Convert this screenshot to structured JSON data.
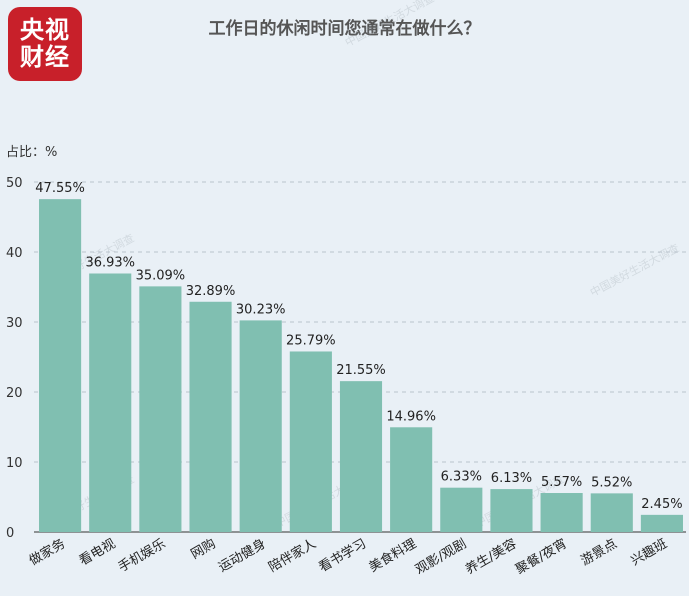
{
  "brand": {
    "line1": "央视",
    "line2": "财经",
    "color": "#c8202a"
  },
  "watermark": "中国美好生活大调查",
  "chart_data": {
    "type": "bar",
    "title": "工作日的休闲时间您通常在做什么？",
    "ylabel": "占比：%",
    "ylim": [
      0,
      50
    ],
    "yticks": [
      0,
      10,
      20,
      30,
      40,
      50
    ],
    "grid": true,
    "bar_color": "#80bfb1",
    "categories": [
      "做家务",
      "看电视",
      "手机娱乐",
      "网购",
      "运动健身",
      "陪伴家人",
      "看书学习",
      "美食料理",
      "观影/观剧",
      "养生/美容",
      "聚餐/夜宵",
      "游景点",
      "兴趣班"
    ],
    "values": [
      47.55,
      36.93,
      35.09,
      32.89,
      30.23,
      25.79,
      21.55,
      14.96,
      6.33,
      6.13,
      5.57,
      5.52,
      2.45
    ],
    "value_labels": [
      "47.55%",
      "36.93%",
      "35.09%",
      "32.89%",
      "30.23%",
      "25.79%",
      "21.55%",
      "14.96%",
      "6.33%",
      "6.13%",
      "5.57%",
      "5.52%",
      "2.45%"
    ]
  }
}
